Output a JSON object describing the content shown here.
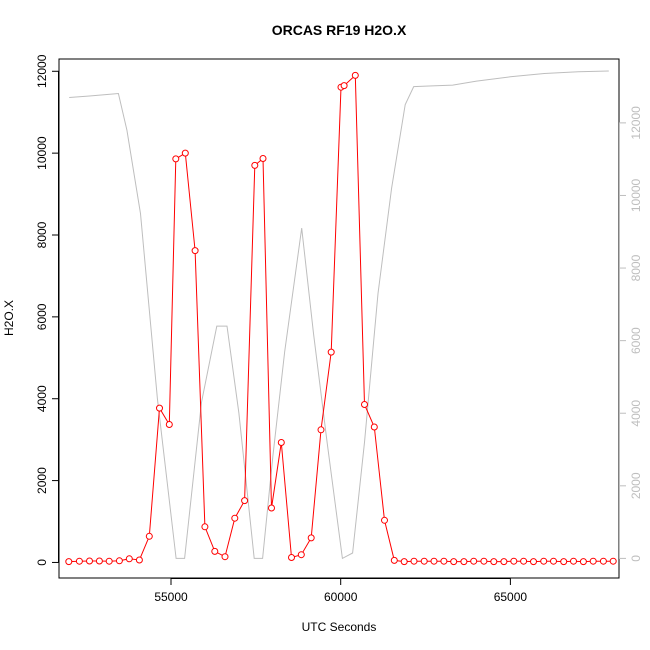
{
  "chart_data": {
    "type": "line",
    "title": "ORCAS RF19 H2O.X",
    "xlabel": "UTC Seconds",
    "ylabel": "H2O.X",
    "xlim": [
      51700,
      68200
    ],
    "ylim": [
      -380,
      12300
    ],
    "y2lim": [
      -540,
      13760
    ],
    "x_ticks": [
      55000,
      60000,
      65000
    ],
    "x_tick_labels": [
      "55000",
      "60000",
      "65000"
    ],
    "y_ticks": [
      0,
      2000,
      4000,
      6000,
      8000,
      10000,
      12000
    ],
    "y_tick_labels": [
      "0",
      "2000",
      "4000",
      "6000",
      "8000",
      "10000",
      "12000"
    ],
    "y2_ticks": [
      0,
      2000,
      4000,
      6000,
      8000,
      10000,
      12000
    ],
    "y2_tick_labels": [
      "0",
      "2000",
      "4000",
      "6000",
      "8000",
      "10000",
      "12000"
    ],
    "grid": false,
    "colors": {
      "primary": "#ff0000",
      "secondary": "#bebebe",
      "axis": "#000000"
    },
    "series": [
      {
        "axis": "left",
        "style": "line+points",
        "color": "#ff0000",
        "x": [
          51990,
          52300,
          52600,
          52890,
          53180,
          53480,
          53770,
          54070,
          54360,
          54660,
          54950,
          55140,
          55420,
          55710,
          56000,
          56290,
          56590,
          56880,
          57170,
          57470,
          57710,
          57960,
          58250,
          58550,
          58840,
          59130,
          59420,
          59720,
          60010,
          60100,
          60430,
          60700,
          60990,
          61290,
          61580,
          61870,
          62160,
          62460,
          62750,
          63040,
          63330,
          63630,
          63920,
          64220,
          64510,
          64810,
          65100,
          65390,
          65680,
          65980,
          66270,
          66570,
          66860,
          67150,
          67440,
          67740,
          68030
        ],
        "y": [
          20,
          30,
          35,
          35,
          30,
          40,
          90,
          60,
          640,
          3770,
          3370,
          9860,
          10000,
          7620,
          870,
          270,
          140,
          1080,
          1510,
          9700,
          9870,
          1330,
          2930,
          120,
          190,
          600,
          3240,
          5140,
          11610,
          11650,
          11900,
          3860,
          3310,
          1030,
          50,
          20,
          30,
          30,
          30,
          30,
          20,
          20,
          30,
          30,
          20,
          20,
          30,
          30,
          20,
          30,
          30,
          20,
          30,
          20,
          30,
          30,
          30
        ]
      },
      {
        "axis": "right",
        "style": "line",
        "color": "#bebebe",
        "x": [
          52000,
          52600,
          53200,
          53450,
          53700,
          54100,
          54600,
          55150,
          55400,
          55900,
          56350,
          56650,
          57000,
          57450,
          57700,
          58000,
          58350,
          58850,
          59200,
          59600,
          60050,
          60350,
          60700,
          61100,
          61500,
          61900,
          62150,
          62700,
          63300,
          64000,
          65000,
          66000,
          67000,
          67900
        ],
        "y": [
          12700,
          12740,
          12790,
          12810,
          11800,
          9500,
          4400,
          0,
          0,
          4300,
          6400,
          6400,
          4000,
          0,
          0,
          2800,
          5700,
          9100,
          6200,
          3200,
          0,
          150,
          3200,
          7300,
          10200,
          12500,
          13000,
          13020,
          13040,
          13150,
          13270,
          13360,
          13410,
          13430
        ]
      }
    ]
  }
}
